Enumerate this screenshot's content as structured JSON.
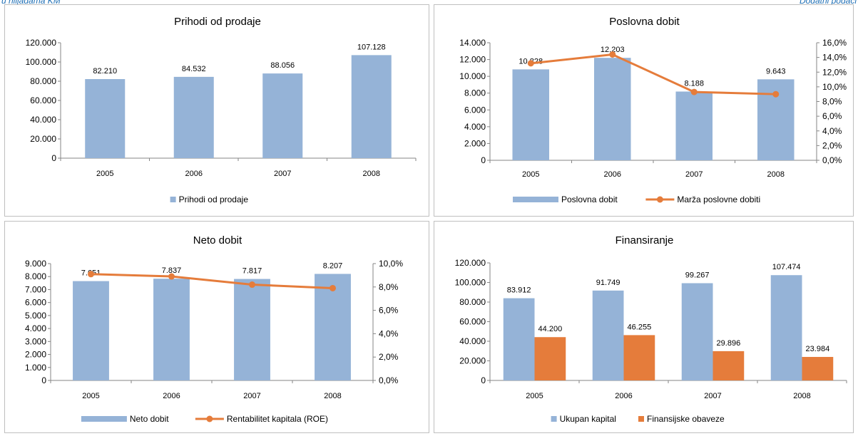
{
  "header": {
    "left_text": "u hiljadama KM",
    "right_text": "Dodatni podaci"
  },
  "chart_data": [
    {
      "type": "bar",
      "title": "Prihodi od prodaje",
      "categories": [
        "2005",
        "2006",
        "2007",
        "2008"
      ],
      "series": [
        {
          "name": "Prihodi od prodaje",
          "values": [
            82210,
            84532,
            88056,
            107128
          ],
          "labels": [
            "82.210",
            "84.532",
            "88.056",
            "107.128"
          ],
          "color": "#95b3d7"
        }
      ],
      "ylim": [
        0,
        120000
      ],
      "yticks": [
        "0",
        "20.000",
        "40.000",
        "60.000",
        "80.000",
        "100.000",
        "120.000"
      ],
      "grid": false,
      "legend": "bottom"
    },
    {
      "type": "bar",
      "title": "Poslovna dobit",
      "categories": [
        "2005",
        "2006",
        "2007",
        "2008"
      ],
      "series": [
        {
          "name": "Poslovna dobit",
          "values": [
            10828,
            12203,
            8188,
            9643
          ],
          "labels": [
            "10.828",
            "12.203",
            "8.188",
            "9.643"
          ],
          "color": "#95b3d7"
        }
      ],
      "line_series": [
        {
          "name": "Marža poslovne dobiti",
          "values": [
            13.2,
            14.4,
            9.3,
            9.0
          ],
          "color": "#e57c3b"
        }
      ],
      "ylim": [
        0,
        14000
      ],
      "yticks": [
        "0",
        "2.000",
        "4.000",
        "6.000",
        "8.000",
        "10.000",
        "12.000",
        "14.000"
      ],
      "y2lim": [
        0,
        16
      ],
      "y2ticks": [
        "0,0%",
        "2,0%",
        "4,0%",
        "6,0%",
        "8,0%",
        "10,0%",
        "12,0%",
        "14,0%",
        "16,0%"
      ],
      "grid": false,
      "legend": "bottom"
    },
    {
      "type": "bar",
      "title": "Neto dobit",
      "categories": [
        "2005",
        "2006",
        "2007",
        "2008"
      ],
      "series": [
        {
          "name": "Neto dobit",
          "values": [
            7651,
            7837,
            7817,
            8207
          ],
          "labels": [
            "7.651",
            "7.837",
            "7.817",
            "8.207"
          ],
          "color": "#95b3d7"
        }
      ],
      "line_series": [
        {
          "name": "Rentabilitet kapitala (ROE)",
          "values": [
            9.1,
            8.9,
            8.2,
            7.9
          ],
          "color": "#e57c3b"
        }
      ],
      "ylim": [
        0,
        9000
      ],
      "yticks": [
        "0",
        "1.000",
        "2.000",
        "3.000",
        "4.000",
        "5.000",
        "6.000",
        "7.000",
        "8.000",
        "9.000"
      ],
      "y2lim": [
        0,
        10
      ],
      "y2ticks": [
        "0,0%",
        "2,0%",
        "4,0%",
        "6,0%",
        "8,0%",
        "10,0%"
      ],
      "grid": false,
      "legend": "bottom"
    },
    {
      "type": "bar",
      "title": "Finansiranje",
      "categories": [
        "2005",
        "2006",
        "2007",
        "2008"
      ],
      "series": [
        {
          "name": "Ukupan kapital",
          "values": [
            83912,
            91749,
            99267,
            107474
          ],
          "labels": [
            "83.912",
            "91.749",
            "99.267",
            "107.474"
          ],
          "color": "#95b3d7"
        },
        {
          "name": "Finansijske obaveze",
          "values": [
            44200,
            46255,
            29896,
            23984
          ],
          "labels": [
            "44.200",
            "46.255",
            "29.896",
            "23.984"
          ],
          "color": "#e57c3b"
        }
      ],
      "ylim": [
        0,
        120000
      ],
      "yticks": [
        "0",
        "20.000",
        "40.000",
        "60.000",
        "80.000",
        "100.000",
        "120.000"
      ],
      "grid": false,
      "legend": "bottom"
    }
  ]
}
